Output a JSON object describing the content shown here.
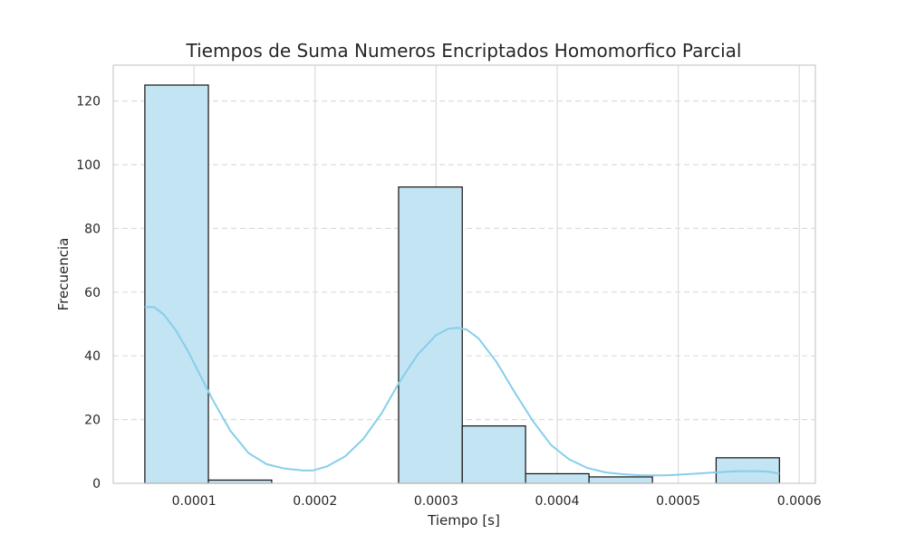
{
  "chart_data": {
    "type": "bar",
    "title": "Tiempos de Suma Numeros Encriptados Homomorfico Parcial",
    "xlabel": "Tiempo [s]",
    "ylabel": "Frecuencia",
    "xlim": [
      3.33e-05,
      0.0006133
    ],
    "ylim": [
      0,
      131.25
    ],
    "xticks": [
      0.0001,
      0.0002,
      0.0003,
      0.0004,
      0.0005,
      0.0006
    ],
    "xtick_labels": [
      "0.0001",
      "0.0002",
      "0.0003",
      "0.0004",
      "0.0005",
      "0.0006"
    ],
    "yticks": [
      0,
      20,
      40,
      60,
      80,
      100,
      120
    ],
    "ytick_labels": [
      "0",
      "20",
      "40",
      "60",
      "80",
      "100",
      "120"
    ],
    "grid": true,
    "bins": [
      {
        "x0": 5.94e-05,
        "x1": 0.0001119,
        "count": 125
      },
      {
        "x0": 0.0001119,
        "x1": 0.0001642,
        "count": 1
      },
      {
        "x0": 0.0001642,
        "x1": 0.0002166,
        "count": 0
      },
      {
        "x0": 0.0002166,
        "x1": 0.000269,
        "count": 0
      },
      {
        "x0": 0.000269,
        "x1": 0.0003216,
        "count": 93
      },
      {
        "x0": 0.0003216,
        "x1": 0.0003739,
        "count": 18
      },
      {
        "x0": 0.0003739,
        "x1": 0.0004263,
        "count": 3
      },
      {
        "x0": 0.0004263,
        "x1": 0.0004787,
        "count": 2
      },
      {
        "x0": 0.0004787,
        "x1": 0.0005313,
        "count": 0
      },
      {
        "x0": 0.0005313,
        "x1": 0.0005836,
        "count": 8
      }
    ],
    "kde": {
      "x": [
        5.94e-05,
        6.7e-05,
        7.5e-05,
        8.5e-05,
        9.5e-05,
        0.000105,
        0.000115,
        0.00013,
        0.000145,
        0.00016,
        0.000175,
        0.00019,
        0.000198,
        0.00021,
        0.000225,
        0.00024,
        0.000255,
        0.00027,
        0.000285,
        0.0003,
        0.00031,
        0.000317,
        0.000325,
        0.000335,
        0.00035,
        0.000365,
        0.00038,
        0.000395,
        0.00041,
        0.000425,
        0.00044,
        0.000455,
        0.00047,
        0.00049,
        0.00051,
        0.00053,
        0.00055,
        0.000565,
        0.000575,
        0.0005836
      ],
      "y": [
        55.3,
        55.3,
        53.0,
        48.0,
        41.5,
        34.0,
        26.5,
        16.5,
        9.5,
        6.0,
        4.6,
        4.0,
        4.0,
        5.3,
        8.5,
        14.0,
        22.0,
        32.0,
        40.5,
        46.5,
        48.5,
        48.8,
        48.3,
        45.5,
        38.0,
        28.5,
        19.5,
        12.0,
        7.5,
        4.8,
        3.4,
        2.8,
        2.5,
        2.5,
        2.9,
        3.4,
        3.8,
        3.8,
        3.6,
        3.0
      ]
    }
  },
  "colors": {
    "bar_fill": "#c3e4f2",
    "bar_edge": "#111111",
    "kde_line": "#87ceeb",
    "grid": "#dcdcdc",
    "frame": "#cccccc"
  }
}
